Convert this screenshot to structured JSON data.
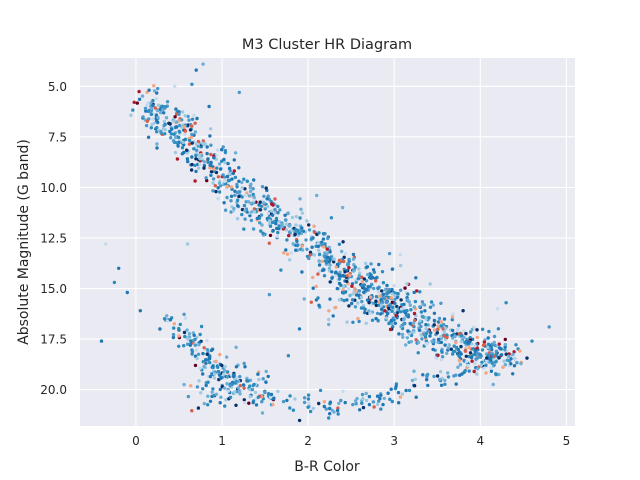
{
  "chart_data": {
    "type": "scatter",
    "title": "M3 Cluster HR Diagram",
    "xlabel": "B-R Color",
    "ylabel": "Absolute Magnitude (G band)",
    "xlim": [
      -0.65,
      5.1
    ],
    "ylim": [
      21.8,
      3.6
    ],
    "y_inverted": true,
    "x_ticks": [
      0,
      1,
      2,
      3,
      4,
      5
    ],
    "x_tick_labels": [
      "0",
      "1",
      "2",
      "3",
      "4",
      "5"
    ],
    "y_ticks": [
      5.0,
      7.5,
      10.0,
      12.5,
      15.0,
      17.5,
      20.0
    ],
    "y_tick_labels": [
      "5.0",
      "7.5",
      "10.0",
      "12.5",
      "15.0",
      "17.5",
      "20.0"
    ],
    "grid": true,
    "legend": "none",
    "colors": {
      "background": "#eaeaf2",
      "grid": "#ffffff",
      "palette": [
        "#1f77b4",
        "#2b8cbe",
        "#4a98c9",
        "#6baed6",
        "#9ecae1",
        "#c6dbef",
        "#08306b",
        "#f4a582",
        "#d6604d",
        "#b2182b",
        "#67001f"
      ]
    },
    "regions": [
      {
        "kind": "main_sequence_curve",
        "points": [
          [
            0.1,
            5.9
          ],
          [
            0.35,
            6.6
          ],
          [
            0.6,
            7.6
          ],
          [
            0.9,
            9.1
          ],
          [
            1.2,
            10.4
          ],
          [
            1.5,
            11.3
          ],
          [
            1.85,
            12.3
          ],
          [
            2.2,
            13.4
          ],
          [
            2.55,
            14.6
          ],
          [
            2.85,
            15.6
          ],
          [
            3.1,
            16.3
          ],
          [
            3.4,
            17.0
          ],
          [
            3.7,
            17.7
          ],
          [
            4.0,
            18.2
          ],
          [
            4.35,
            18.5
          ]
        ],
        "count": 1150,
        "spread_x": 0.11,
        "spread_y": 0.5
      },
      {
        "kind": "lower_branch_curve",
        "points": [
          [
            0.3,
            16.4
          ],
          [
            0.55,
            17.2
          ],
          [
            0.75,
            18.1
          ],
          [
            0.95,
            19.1
          ],
          [
            1.2,
            19.8
          ],
          [
            1.5,
            20.4
          ],
          [
            2.0,
            20.8
          ],
          [
            2.5,
            20.7
          ],
          [
            3.0,
            20.2
          ],
          [
            3.5,
            19.5
          ],
          [
            4.0,
            18.7
          ],
          [
            4.4,
            18.2
          ]
        ],
        "count": 280,
        "spread_x": 0.08,
        "spread_y": 0.28
      },
      {
        "kind": "scatter_blob",
        "center": [
          1.1,
          19.6
        ],
        "sx": 0.25,
        "sy": 0.7,
        "count": 110
      },
      {
        "kind": "scatter_blob",
        "center": [
          2.7,
          15.2
        ],
        "sx": 0.35,
        "sy": 0.8,
        "count": 140
      },
      {
        "kind": "sparse_points",
        "points": [
          [
            -0.2,
            14.0
          ],
          [
            -0.35,
            12.8
          ],
          [
            -0.25,
            14.7
          ],
          [
            -0.1,
            15.2
          ],
          [
            0.05,
            16.1
          ],
          [
            -0.4,
            17.6
          ],
          [
            0.7,
            4.2
          ],
          [
            0.78,
            3.9
          ],
          [
            0.65,
            4.9
          ],
          [
            1.2,
            5.3
          ],
          [
            0.85,
            6.0
          ],
          [
            0.5,
            6.7
          ],
          [
            0.45,
            5.0
          ],
          [
            0.6,
            12.8
          ],
          [
            1.55,
            15.3
          ],
          [
            1.9,
            17.0
          ],
          [
            2.1,
            10.4
          ],
          [
            2.4,
            11.0
          ],
          [
            4.8,
            16.9
          ],
          [
            4.6,
            17.6
          ],
          [
            4.2,
            16.0
          ],
          [
            4.3,
            15.7
          ],
          [
            3.8,
            16.1
          ]
        ]
      }
    ]
  }
}
